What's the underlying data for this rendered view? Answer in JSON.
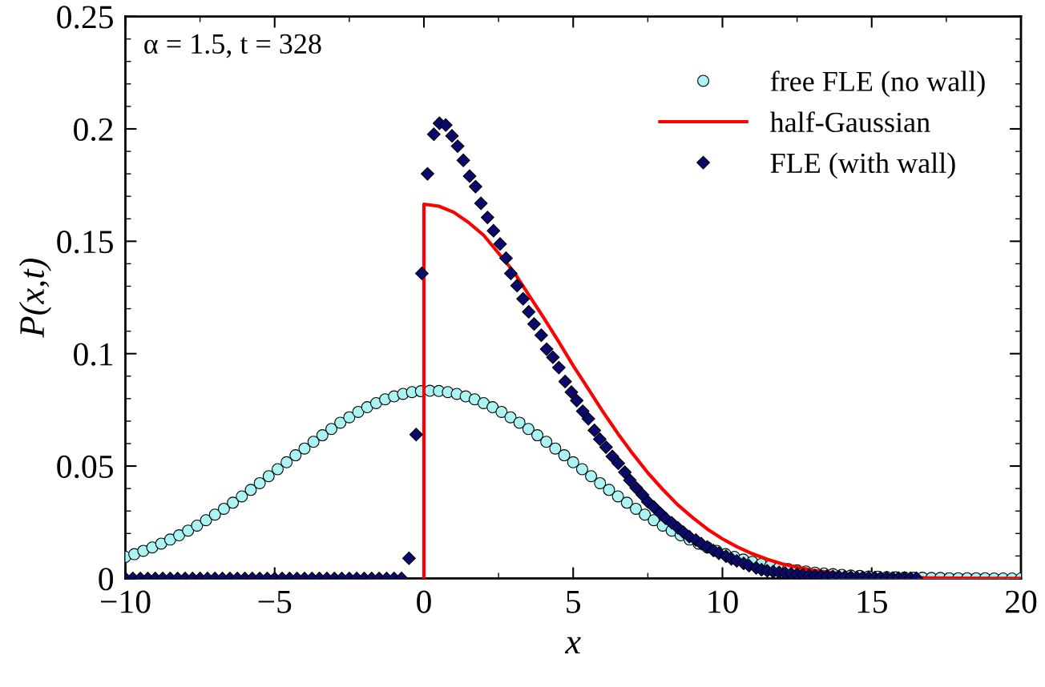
{
  "chart_data": {
    "type": "scatter",
    "xlabel": "x",
    "ylabel": "P(x,t)",
    "annotations": [
      "α = 1.5, t = 328"
    ],
    "xlim": [
      -10,
      20
    ],
    "xticks": [
      {
        "value": -10,
        "label": "−10"
      },
      {
        "value": -5,
        "label": "−5"
      },
      0,
      5,
      10,
      15,
      20
    ],
    "ylim": [
      0,
      0.25
    ],
    "yticks": [
      0,
      0.05,
      0.1,
      0.15,
      0.2,
      0.25
    ],
    "grid": false,
    "legend": "top right",
    "series": [
      {
        "name": "free FLE (no wall)",
        "marker": "circle",
        "color": "#aaf4f4",
        "x": [
          -10,
          -9.7,
          -9.4,
          -9.1,
          -8.8,
          -8.5,
          -8.2,
          -7.9,
          -7.6,
          -7.3,
          -7.0,
          -6.7,
          -6.4,
          -6.1,
          -5.8,
          -5.5,
          -5.2,
          -4.9,
          -4.6,
          -4.3,
          -4.0,
          -3.7,
          -3.4,
          -3.1,
          -2.8,
          -2.5,
          -2.2,
          -1.9,
          -1.6,
          -1.3,
          -1.0,
          -0.7,
          -0.4,
          -0.1,
          0.2,
          0.5,
          0.8,
          1.1,
          1.4,
          1.7,
          2.0,
          2.3,
          2.6,
          2.9,
          3.2,
          3.5,
          3.8,
          4.1,
          4.4,
          4.7,
          5.0,
          5.3,
          5.6,
          5.9,
          6.2,
          6.5,
          6.8,
          7.1,
          7.4,
          7.7,
          8.0,
          8.3,
          8.6,
          8.9,
          9.2,
          9.5,
          9.8,
          10.1,
          10.4,
          10.7,
          11.0,
          11.3,
          11.6,
          11.9,
          12.2,
          12.5,
          12.8,
          13.1,
          13.4,
          13.7,
          14.0,
          14.3,
          14.6,
          14.9,
          15.2,
          15.5,
          15.8,
          16.1,
          16.4,
          16.7,
          17.0,
          17.3,
          17.6,
          17.9,
          18.2,
          18.5,
          18.8,
          19.1,
          19.4,
          19.7,
          20.0
        ],
        "values": [
          0.0096,
          0.0108,
          0.0123,
          0.0138,
          0.0155,
          0.0173,
          0.0192,
          0.0213,
          0.0235,
          0.0259,
          0.0284,
          0.031,
          0.0337,
          0.0365,
          0.0394,
          0.0424,
          0.0455,
          0.0486,
          0.0517,
          0.0548,
          0.0578,
          0.0608,
          0.0637,
          0.0665,
          0.0693,
          0.0717,
          0.0741,
          0.0762,
          0.078,
          0.0797,
          0.081,
          0.0821,
          0.0829,
          0.0833,
          0.0835,
          0.0834,
          0.0829,
          0.0821,
          0.081,
          0.0797,
          0.078,
          0.0762,
          0.0741,
          0.0717,
          0.0693,
          0.0665,
          0.0637,
          0.0608,
          0.0578,
          0.0548,
          0.0517,
          0.0486,
          0.0455,
          0.0424,
          0.0394,
          0.0365,
          0.0337,
          0.031,
          0.0284,
          0.0259,
          0.0235,
          0.0213,
          0.0192,
          0.0173,
          0.0155,
          0.0138,
          0.0123,
          0.0108,
          0.0096,
          0.0084,
          0.0074,
          0.0064,
          0.0056,
          0.0048,
          0.0042,
          0.0036,
          0.0031,
          0.0026,
          0.0022,
          0.0019,
          0.0016,
          0.0013,
          0.0011,
          0.0009,
          0.0008,
          0.0006,
          0.0005,
          0.0004,
          0.0003,
          0.0003,
          0.0002,
          0.0002,
          0.0001,
          0.0001,
          0.0001,
          0.0001,
          0.0001,
          0,
          0,
          0,
          0
        ]
      },
      {
        "name": "half-Gaussian",
        "type": "line",
        "marker": "none",
        "color": "#ff0000",
        "x": [
          0,
          0,
          0.5,
          1,
          1.5,
          2,
          2.5,
          3,
          3.5,
          4,
          4.5,
          5,
          5.5,
          6,
          6.5,
          7,
          7.5,
          8,
          8.5,
          9,
          9.5,
          10,
          10.5,
          11,
          11.5,
          12,
          12.5,
          13,
          13.5,
          14,
          15,
          16,
          17,
          18,
          19,
          20
        ],
        "values": [
          0,
          0.1665,
          0.1656,
          0.1629,
          0.1583,
          0.1527,
          0.1447,
          0.1366,
          0.1264,
          0.1162,
          0.1056,
          0.0947,
          0.0844,
          0.0741,
          0.0644,
          0.0554,
          0.047,
          0.0396,
          0.0328,
          0.0271,
          0.0219,
          0.0176,
          0.014,
          0.011,
          0.0085,
          0.0065,
          0.005,
          0.0037,
          0.0028,
          0.002,
          0.001,
          0.0005,
          0.0002,
          0.0001,
          0,
          0
        ]
      },
      {
        "name": "FLE (with wall)",
        "marker": "diamond",
        "color": "#0a0a6e",
        "x": [
          -10,
          -9.75,
          -9.5,
          -9.25,
          -9,
          -8.75,
          -8.5,
          -8.25,
          -8,
          -7.75,
          -7.5,
          -7.25,
          -7,
          -6.75,
          -6.5,
          -6.25,
          -6,
          -5.75,
          -5.5,
          -5.25,
          -5,
          -4.75,
          -4.5,
          -4.25,
          -4,
          -3.75,
          -3.5,
          -3.25,
          -3,
          -2.75,
          -2.5,
          -2.25,
          -2,
          -1.75,
          -1.5,
          -1.25,
          -1,
          -0.75,
          -0.5,
          -0.26,
          -0.07,
          0.12,
          0.33,
          0.52,
          0.73,
          0.94,
          1.13,
          1.32,
          1.53,
          1.73,
          1.91,
          2.13,
          2.33,
          2.55,
          2.75,
          2.91,
          3.12,
          3.32,
          3.51,
          3.69,
          3.93,
          4.11,
          4.32,
          4.52,
          4.73,
          4.94,
          5.12,
          5.32,
          5.51,
          5.71,
          5.89,
          6.1,
          6.31,
          6.51,
          6.73,
          6.9,
          7.11,
          7.32,
          7.5,
          7.7,
          7.92,
          8.1,
          8.3,
          8.51,
          8.69,
          8.89,
          9.11,
          9.29,
          9.49,
          9.7,
          9.88,
          10.12,
          10.3,
          10.48,
          10.71,
          10.89,
          11.13,
          11.31,
          11.5,
          11.7,
          11.9,
          12.1,
          12.3,
          12.5,
          12.7,
          12.9,
          13.1,
          13.3,
          13.5,
          13.7,
          13.9,
          14.1,
          14.3,
          14.5,
          14.7,
          14.9,
          15.1,
          15.3,
          15.5,
          15.7,
          15.9,
          16.1,
          16.3,
          16.5
        ],
        "values": [
          0,
          0,
          0,
          0,
          0,
          0,
          0,
          0,
          0,
          0,
          0,
          0,
          0,
          0,
          0,
          0,
          0,
          0,
          0,
          0,
          0,
          0,
          0,
          0,
          0,
          0,
          0,
          0,
          0,
          0,
          0,
          0,
          0,
          0,
          0,
          0,
          0,
          0,
          0.009,
          0.064,
          0.1357,
          0.18,
          0.1976,
          0.2025,
          0.2017,
          0.1969,
          0.1923,
          0.186,
          0.179,
          0.1743,
          0.1669,
          0.1606,
          0.1547,
          0.1488,
          0.1425,
          0.1357,
          0.1303,
          0.1244,
          0.1186,
          0.1132,
          0.1082,
          0.102,
          0.0984,
          0.0938,
          0.0876,
          0.0829,
          0.0791,
          0.0744,
          0.071,
          0.0659,
          0.062,
          0.0584,
          0.0543,
          0.0512,
          0.0473,
          0.0437,
          0.0403,
          0.0372,
          0.0341,
          0.0318,
          0.029,
          0.0267,
          0.0248,
          0.0225,
          0.0206,
          0.0186,
          0.0171,
          0.0155,
          0.014,
          0.0124,
          0.0112,
          0.0099,
          0.0087,
          0.0078,
          0.0067,
          0.0057,
          0.0047,
          0.0039,
          0.0034,
          0.003,
          0.0027,
          0.0024,
          0.0021,
          0.0019,
          0.0016,
          0.0014,
          0.0013,
          0.0011,
          0.001,
          0.0009,
          0.0008,
          0.0007,
          0.0006,
          0.0005,
          0.0005,
          0.0004,
          0.0004,
          0.0003,
          0.0003,
          0.0002,
          0.0002,
          0.0002,
          0.0001,
          0.0001
        ]
      }
    ]
  }
}
